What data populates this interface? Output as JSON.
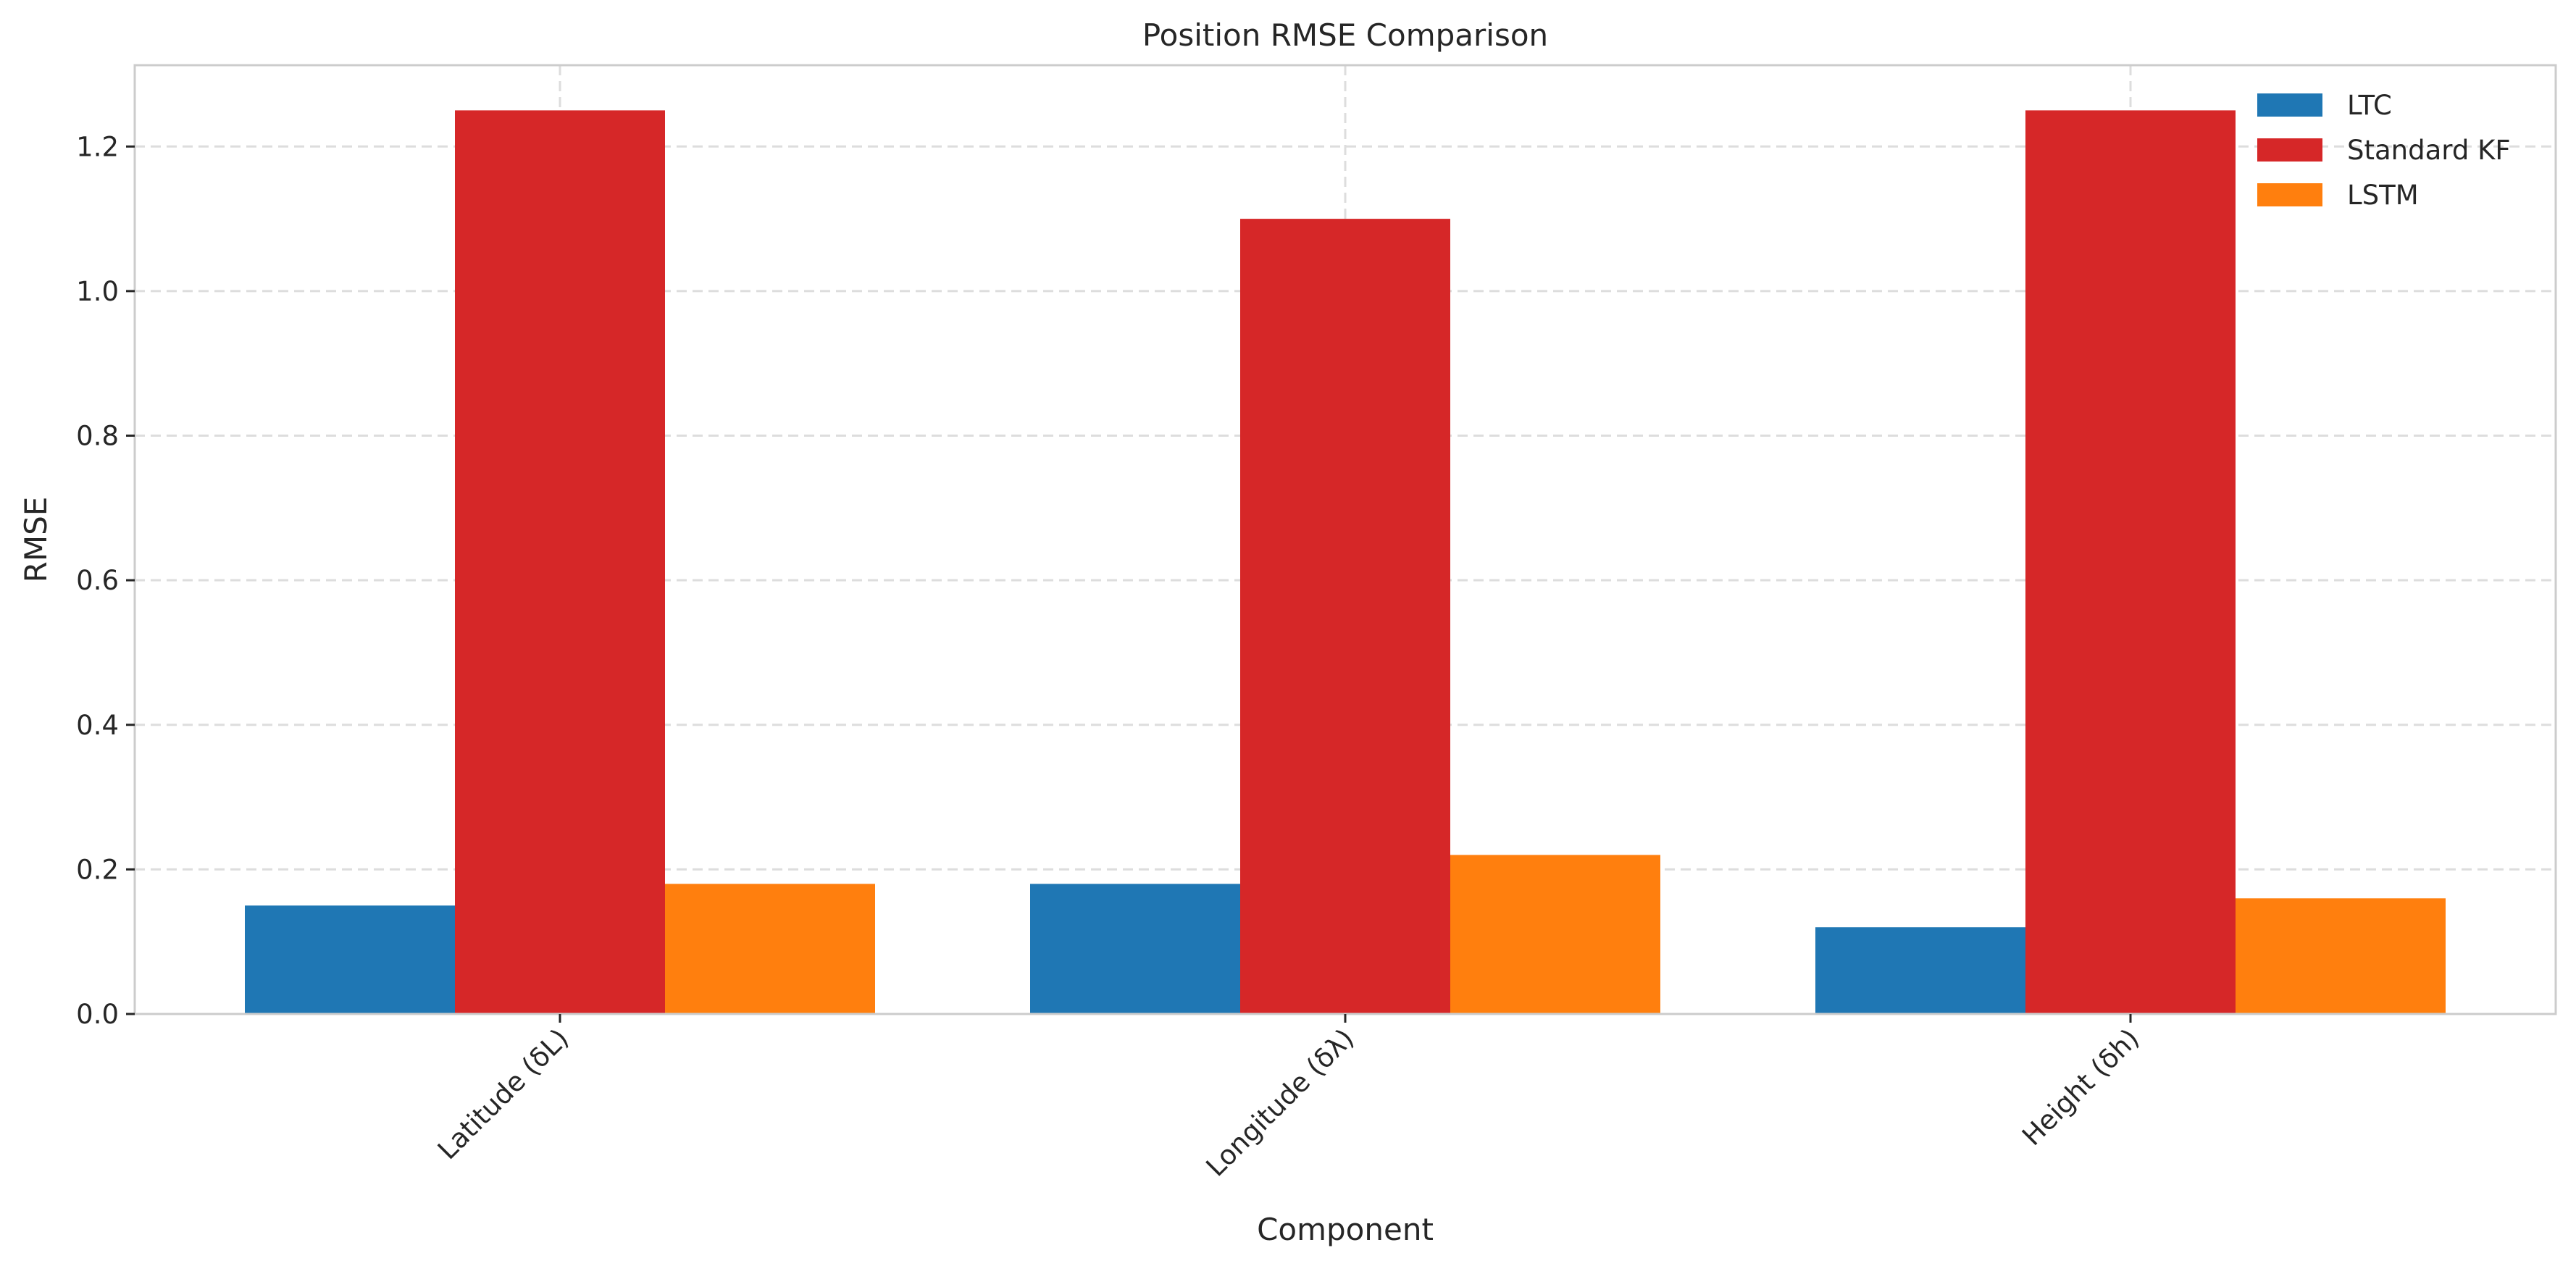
{
  "chart_data": {
    "type": "bar",
    "title": "Position RMSE Comparison",
    "xlabel": "Component",
    "ylabel": "RMSE",
    "categories": [
      "Latitude (δL)",
      "Longitude (δλ)",
      "Height (δh)"
    ],
    "series": [
      {
        "name": "LTC",
        "color": "#1f77b4",
        "values": [
          0.15,
          0.18,
          0.12
        ]
      },
      {
        "name": "Standard KF",
        "color": "#d62728",
        "values": [
          1.25,
          1.1,
          1.25
        ]
      },
      {
        "name": "LSTM",
        "color": "#ff7f0e",
        "values": [
          0.18,
          0.22,
          0.16
        ]
      }
    ],
    "ylim": [
      0,
      1.3125
    ],
    "yticks": [
      0.0,
      0.2,
      0.4,
      0.6,
      0.8,
      1.0,
      1.2
    ],
    "ytick_labels": [
      "0.0",
      "0.2",
      "0.4",
      "0.6",
      "0.8",
      "1.0",
      "1.2"
    ],
    "grid": true,
    "legend_position": "top-right"
  }
}
